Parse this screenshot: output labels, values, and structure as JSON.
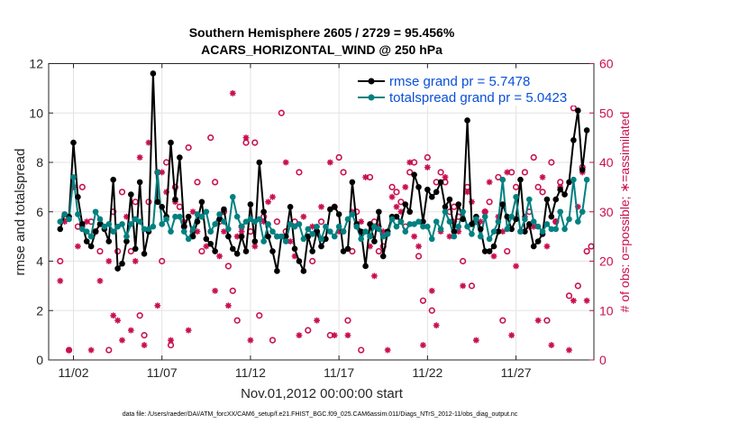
{
  "title": {
    "line1": "Southern Hemisphere 2605 / 2729 = 95.456%",
    "line2": "ACARS_HORIZONTAL_WIND @ 250 hPa"
  },
  "footer": "data file: /Users/raeder/DAI/ATM_forcXX/CAM6_setup/f.e21.FHIST_BGC.f09_025.CAM6assim.011/Diags_NTrS_2012-11/obs_diag_output.nc",
  "colors": {
    "rmse": "#000000",
    "spread": "#008080",
    "obs": "#c8104e",
    "legend_text": "#0a4fd8"
  },
  "chart_data": {
    "type": "line",
    "xlabel": "Nov.01,2012 00:00:00 start",
    "ylabel": "rmse and totalspread",
    "y2label": "# of obs: o=possible; ∗=assimilated",
    "xlim": [
      0.6,
      31.4
    ],
    "ylim": [
      0,
      12
    ],
    "y2lim": [
      0,
      60
    ],
    "xticks": [
      2,
      7,
      12,
      17,
      22,
      27
    ],
    "xticklabels": [
      "11/02",
      "11/07",
      "11/12",
      "11/17",
      "11/22",
      "11/27"
    ],
    "yticks": [
      0,
      2,
      4,
      6,
      8,
      10,
      12
    ],
    "y2ticks": [
      0,
      10,
      20,
      30,
      40,
      50,
      60
    ],
    "x": [
      1.25,
      1.5,
      1.75,
      2.0,
      2.25,
      2.5,
      2.75,
      3.0,
      3.25,
      3.5,
      3.75,
      4.0,
      4.25,
      4.5,
      4.75,
      5.0,
      5.25,
      5.5,
      5.75,
      6.0,
      6.25,
      6.5,
      6.75,
      7.0,
      7.25,
      7.5,
      7.75,
      8.0,
      8.25,
      8.5,
      8.75,
      9.0,
      9.25,
      9.5,
      9.75,
      10.0,
      10.25,
      10.5,
      10.75,
      11.0,
      11.25,
      11.5,
      11.75,
      12.0,
      12.25,
      12.5,
      12.75,
      13.0,
      13.25,
      13.5,
      13.75,
      14.0,
      14.25,
      14.5,
      14.75,
      15.0,
      15.25,
      15.5,
      15.75,
      16.0,
      16.25,
      16.5,
      16.75,
      17.0,
      17.25,
      17.5,
      17.75,
      18.0,
      18.25,
      18.5,
      18.75,
      19.0,
      19.25,
      19.5,
      19.75,
      20.0,
      20.25,
      20.5,
      20.75,
      21.0,
      21.25,
      21.5,
      21.75,
      22.0,
      22.25,
      22.5,
      22.75,
      23.0,
      23.25,
      23.5,
      23.75,
      24.0,
      24.25,
      24.5,
      24.75,
      25.0,
      25.25,
      25.5,
      25.75,
      26.0,
      26.25,
      26.5,
      26.75,
      27.0,
      27.25,
      27.5,
      27.75,
      28.0,
      28.25,
      28.5,
      28.75,
      29.0,
      29.25,
      29.5,
      29.75,
      30.0,
      30.25,
      30.5,
      30.75,
      31.0
    ],
    "series": [
      {
        "name": "rmse grand pr = 5.7478",
        "marker": "filled-circle",
        "values": [
          5.3,
          5.9,
          5.8,
          8.8,
          6.6,
          5.5,
          4.8,
          4.6,
          5.2,
          5.5,
          5.3,
          4.8,
          7.3,
          3.7,
          3.9,
          4.8,
          6.7,
          4.5,
          7.2,
          4.3,
          5.2,
          11.6,
          6.4,
          6.2,
          5.8,
          8.8,
          6.5,
          8.2,
          5.4,
          5.8,
          5.0,
          5.6,
          6.4,
          4.9,
          4.7,
          4.4,
          5.7,
          6.1,
          5.0,
          4.5,
          4.3,
          5.0,
          4.4,
          6.3,
          4.8,
          8.0,
          6.0,
          5.0,
          4.4,
          3.6,
          5.0,
          5.0,
          6.2,
          4.5,
          4.0,
          3.6,
          5.0,
          4.4,
          5.2,
          4.6,
          4.9,
          6.1,
          6.2,
          5.9,
          4.4,
          4.5,
          7.2,
          5.5,
          5.2,
          3.8,
          5.5,
          4.8,
          6.0,
          4.2,
          5.2,
          5.8,
          5.8,
          5.6,
          6.3,
          6.0,
          7.5,
          7.0,
          5.6,
          6.9,
          6.6,
          6.8,
          7.2,
          6.2,
          6.5,
          5.2,
          6.3,
          5.7,
          9.7,
          5.5,
          5.8,
          5.3,
          4.4,
          4.4,
          4.6,
          5.2,
          6.3,
          5.8,
          5.3,
          5.7,
          7.3,
          5.2,
          5.5,
          4.6,
          4.8,
          5.1,
          6.5,
          5.8,
          6.5,
          6.9,
          6.7,
          7.2,
          8.9,
          10.1,
          7.7,
          9.3
        ]
      },
      {
        "name": "totalspread grand pr = 5.0423",
        "marker": "filled-circle",
        "values": [
          5.6,
          5.9,
          5.7,
          7.4,
          5.9,
          5.3,
          5.2,
          5.0,
          6.0,
          5.7,
          5.4,
          5.5,
          5.2,
          5.4,
          5.5,
          5.0,
          5.5,
          5.7,
          5.6,
          5.3,
          5.3,
          5.4,
          7.6,
          5.5,
          5.7,
          5.2,
          5.8,
          5.8,
          5.2,
          4.9,
          5.3,
          5.9,
          5.8,
          6.0,
          5.2,
          5.5,
          5.9,
          5.6,
          5.3,
          6.6,
          5.8,
          5.4,
          5.6,
          5.7,
          5.6,
          5.7,
          4.8,
          5.5,
          5.2,
          5.0,
          5.0,
          4.8,
          5.5,
          5.4,
          5.5,
          4.9,
          5.3,
          5.1,
          5.4,
          4.9,
          5.4,
          5.2,
          5.0,
          5.4,
          5.2,
          5.7,
          5.9,
          5.4,
          4.9,
          5.2,
          5.0,
          5.4,
          5.3,
          5.0,
          5.1,
          5.7,
          5.4,
          5.6,
          5.2,
          5.5,
          5.5,
          5.6,
          5.4,
          5.4,
          4.9,
          5.6,
          5.3,
          6.0,
          5.6,
          5.0,
          5.4,
          6.0,
          5.4,
          5.1,
          5.7,
          5.0,
          5.8,
          4.9,
          5.2,
          5.6,
          7.3,
          5.3,
          5.8,
          6.6,
          5.2,
          5.7,
          6.5,
          5.6,
          5.4,
          5.2,
          5.5,
          5.3,
          5.3,
          6.0,
          5.3,
          5.7,
          7.3,
          5.6,
          6.0,
          7.3
        ]
      }
    ],
    "obs_possible": [
      [
        1.25,
        20
      ],
      [
        1.5,
        29
      ],
      [
        1.75,
        2
      ],
      [
        2.25,
        27
      ],
      [
        2.5,
        35
      ],
      [
        3.0,
        28
      ],
      [
        3.25,
        26
      ],
      [
        3.5,
        22
      ],
      [
        4.0,
        2
      ],
      [
        4.25,
        30
      ],
      [
        4.5,
        22
      ],
      [
        4.75,
        34
      ],
      [
        5.25,
        22
      ],
      [
        5.5,
        32
      ],
      [
        5.75,
        9
      ],
      [
        6.0,
        5
      ],
      [
        6.25,
        32
      ],
      [
        6.75,
        38
      ],
      [
        7.0,
        20
      ],
      [
        7.25,
        40
      ],
      [
        7.5,
        3
      ],
      [
        7.75,
        35
      ],
      [
        8.0,
        31
      ],
      [
        8.25,
        27
      ],
      [
        8.5,
        43
      ],
      [
        8.75,
        26
      ],
      [
        9.0,
        36
      ],
      [
        9.25,
        22
      ],
      [
        9.75,
        45
      ],
      [
        10.0,
        36
      ],
      [
        10.25,
        28
      ],
      [
        10.5,
        30
      ],
      [
        10.75,
        19
      ],
      [
        11.0,
        14
      ],
      [
        11.25,
        8
      ],
      [
        11.5,
        27
      ],
      [
        11.75,
        44
      ],
      [
        12.0,
        26
      ],
      [
        12.25,
        44
      ],
      [
        12.5,
        9
      ],
      [
        12.75,
        29
      ],
      [
        13.25,
        4
      ],
      [
        13.5,
        28
      ],
      [
        13.75,
        50
      ],
      [
        14.0,
        26
      ],
      [
        14.5,
        28
      ],
      [
        14.75,
        38
      ],
      [
        15.25,
        6
      ],
      [
        15.5,
        20
      ],
      [
        15.75,
        26
      ],
      [
        16.0,
        28
      ],
      [
        16.5,
        5
      ],
      [
        16.75,
        31
      ],
      [
        17.0,
        41
      ],
      [
        17.25,
        38
      ],
      [
        17.5,
        8
      ],
      [
        17.75,
        22
      ],
      [
        18.0,
        30
      ],
      [
        18.25,
        2
      ],
      [
        18.75,
        37
      ],
      [
        19.0,
        28
      ],
      [
        19.25,
        22
      ],
      [
        19.5,
        23
      ],
      [
        20.0,
        35
      ],
      [
        20.25,
        34
      ],
      [
        20.5,
        32
      ],
      [
        20.75,
        27
      ],
      [
        21.0,
        38
      ],
      [
        21.25,
        40
      ],
      [
        21.5,
        21
      ],
      [
        21.75,
        12
      ],
      [
        22.0,
        41
      ],
      [
        22.25,
        10
      ],
      [
        22.5,
        36
      ],
      [
        22.75,
        38
      ],
      [
        23.0,
        36
      ],
      [
        23.25,
        30
      ],
      [
        23.5,
        31
      ],
      [
        23.75,
        29
      ],
      [
        24.0,
        20
      ],
      [
        24.25,
        35
      ],
      [
        24.5,
        15
      ],
      [
        24.75,
        28
      ],
      [
        25.25,
        30
      ],
      [
        25.5,
        32
      ],
      [
        26.0,
        37
      ],
      [
        26.25,
        8
      ],
      [
        26.5,
        22
      ],
      [
        26.75,
        38
      ],
      [
        27.0,
        35
      ],
      [
        27.5,
        38
      ],
      [
        27.75,
        30
      ],
      [
        28.0,
        41
      ],
      [
        28.25,
        35
      ],
      [
        28.5,
        34
      ],
      [
        28.75,
        8
      ],
      [
        29.0,
        40
      ],
      [
        29.25,
        28
      ],
      [
        29.5,
        36
      ],
      [
        29.75,
        57
      ],
      [
        30.0,
        13
      ],
      [
        30.25,
        51
      ],
      [
        30.5,
        15
      ],
      [
        30.75,
        39
      ],
      [
        31.0,
        22
      ],
      [
        31.25,
        23
      ]
    ],
    "obs_assimilated": [
      [
        1.25,
        16
      ],
      [
        1.5,
        28
      ],
      [
        1.75,
        2
      ],
      [
        2.0,
        35
      ],
      [
        2.25,
        23
      ],
      [
        2.5,
        27
      ],
      [
        2.75,
        28
      ],
      [
        3.0,
        2
      ],
      [
        3.25,
        26
      ],
      [
        3.5,
        16
      ],
      [
        4.0,
        20
      ],
      [
        4.25,
        9
      ],
      [
        4.5,
        8
      ],
      [
        4.75,
        4
      ],
      [
        5.0,
        29
      ],
      [
        5.25,
        6
      ],
      [
        5.5,
        20
      ],
      [
        5.75,
        41
      ],
      [
        6.0,
        3
      ],
      [
        6.25,
        44
      ],
      [
        6.75,
        11
      ],
      [
        7.0,
        38
      ],
      [
        7.25,
        34
      ],
      [
        7.5,
        4
      ],
      [
        7.75,
        32
      ],
      [
        8.25,
        28
      ],
      [
        8.5,
        6
      ],
      [
        8.75,
        30
      ],
      [
        9.0,
        26
      ],
      [
        9.25,
        29
      ],
      [
        9.5,
        23
      ],
      [
        9.75,
        26
      ],
      [
        10.0,
        14
      ],
      [
        10.25,
        21
      ],
      [
        10.5,
        26
      ],
      [
        10.75,
        11
      ],
      [
        11.0,
        54
      ],
      [
        11.25,
        25
      ],
      [
        11.5,
        26
      ],
      [
        11.75,
        45
      ],
      [
        12.0,
        4
      ],
      [
        12.25,
        23
      ],
      [
        12.75,
        28
      ],
      [
        13.0,
        32
      ],
      [
        13.25,
        33
      ],
      [
        13.5,
        25
      ],
      [
        14.0,
        40
      ],
      [
        14.25,
        24
      ],
      [
        14.5,
        21
      ],
      [
        14.75,
        5
      ],
      [
        15.0,
        29
      ],
      [
        15.25,
        25
      ],
      [
        15.5,
        27
      ],
      [
        15.75,
        8
      ],
      [
        16.0,
        31
      ],
      [
        16.5,
        40
      ],
      [
        16.75,
        5
      ],
      [
        17.0,
        26
      ],
      [
        17.25,
        26
      ],
      [
        17.5,
        5
      ],
      [
        17.75,
        30
      ],
      [
        18.0,
        27
      ],
      [
        18.25,
        28
      ],
      [
        18.5,
        37
      ],
      [
        18.75,
        23
      ],
      [
        19.0,
        17
      ],
      [
        19.25,
        27
      ],
      [
        19.5,
        26
      ],
      [
        19.75,
        2
      ],
      [
        20.0,
        33
      ],
      [
        20.25,
        31
      ],
      [
        20.5,
        30
      ],
      [
        20.75,
        35
      ],
      [
        21.0,
        40
      ],
      [
        21.25,
        25
      ],
      [
        21.5,
        23
      ],
      [
        21.75,
        3
      ],
      [
        22.0,
        39
      ],
      [
        22.25,
        14
      ],
      [
        22.5,
        7
      ],
      [
        22.75,
        26
      ],
      [
        23.0,
        37
      ],
      [
        23.25,
        25
      ],
      [
        23.5,
        28
      ],
      [
        23.75,
        26
      ],
      [
        24.0,
        15
      ],
      [
        24.25,
        34
      ],
      [
        24.5,
        32
      ],
      [
        24.75,
        4
      ],
      [
        25.0,
        28
      ],
      [
        25.25,
        30
      ],
      [
        25.5,
        36
      ],
      [
        25.75,
        21
      ],
      [
        26.0,
        29
      ],
      [
        26.25,
        26
      ],
      [
        26.5,
        38
      ],
      [
        26.75,
        5
      ],
      [
        27.0,
        19
      ],
      [
        27.25,
        26
      ],
      [
        27.5,
        29
      ],
      [
        27.75,
        27
      ],
      [
        28.0,
        27
      ],
      [
        28.25,
        8
      ],
      [
        28.5,
        37
      ],
      [
        28.75,
        23
      ],
      [
        29.0,
        3
      ],
      [
        29.25,
        28
      ],
      [
        29.5,
        35
      ],
      [
        29.75,
        54
      ],
      [
        30.0,
        2
      ],
      [
        30.25,
        12
      ],
      [
        30.5,
        31
      ],
      [
        30.75,
        38
      ],
      [
        31.0,
        12
      ]
    ],
    "legend_position": "top-right",
    "grid": true
  }
}
